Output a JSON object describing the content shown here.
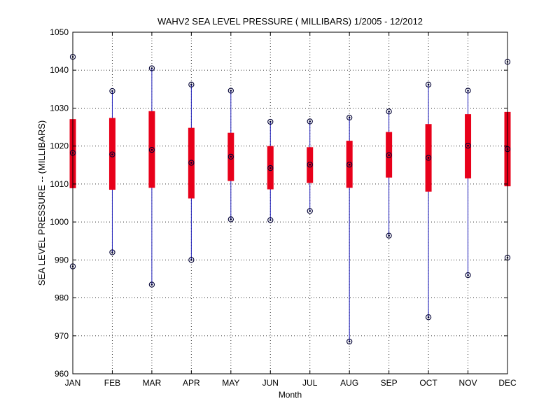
{
  "chart_data": {
    "type": "boxplot",
    "title": "WAHV2  SEA LEVEL PRESSURE ( MILLIBARS) 1/2005 - 12/2012",
    "xlabel": "Month",
    "ylabel": "SEA LEVEL PRESSURE -- (MILLIBARS)",
    "ylim": [
      960,
      1050
    ],
    "yticks": [
      960,
      970,
      980,
      990,
      1000,
      1010,
      1020,
      1030,
      1040,
      1050
    ],
    "grid": true,
    "categories": [
      "JAN",
      "FEB",
      "MAR",
      "APR",
      "MAY",
      "JUN",
      "JUL",
      "AUG",
      "SEP",
      "OCT",
      "NOV",
      "DEC"
    ],
    "series": [
      {
        "name": "max",
        "values": [
          1043.5,
          1034.5,
          1040.5,
          1036.2,
          1034.6,
          1026.4,
          1026.5,
          1027.5,
          1029.1,
          1036.2,
          1034.6,
          1042.2
        ]
      },
      {
        "name": "upper_quartile",
        "values": [
          1027.1,
          1027.4,
          1029.2,
          1024.8,
          1023.5,
          1020.0,
          1019.7,
          1021.4,
          1023.7,
          1025.8,
          1028.4,
          1029.0
        ]
      },
      {
        "name": "mean",
        "values": [
          1018.2,
          1017.8,
          1019.0,
          1015.6,
          1017.2,
          1014.2,
          1015.1,
          1015.1,
          1017.6,
          1016.9,
          1020.1,
          1019.2
        ]
      },
      {
        "name": "lower_quartile",
        "values": [
          1008.9,
          1008.5,
          1009.0,
          1006.2,
          1010.8,
          1008.6,
          1010.3,
          1009.0,
          1011.7,
          1008.0,
          1011.5,
          1009.4
        ]
      },
      {
        "name": "min",
        "values": [
          988.3,
          992.0,
          983.5,
          990.0,
          1000.7,
          1000.5,
          1002.9,
          968.5,
          996.4,
          974.9,
          986.0,
          990.6
        ]
      }
    ],
    "colors": {
      "whisker": "#1a1ab8",
      "box": "#e8001a",
      "marker": "#000033",
      "grid": "#333333",
      "axis": "#000000"
    }
  }
}
